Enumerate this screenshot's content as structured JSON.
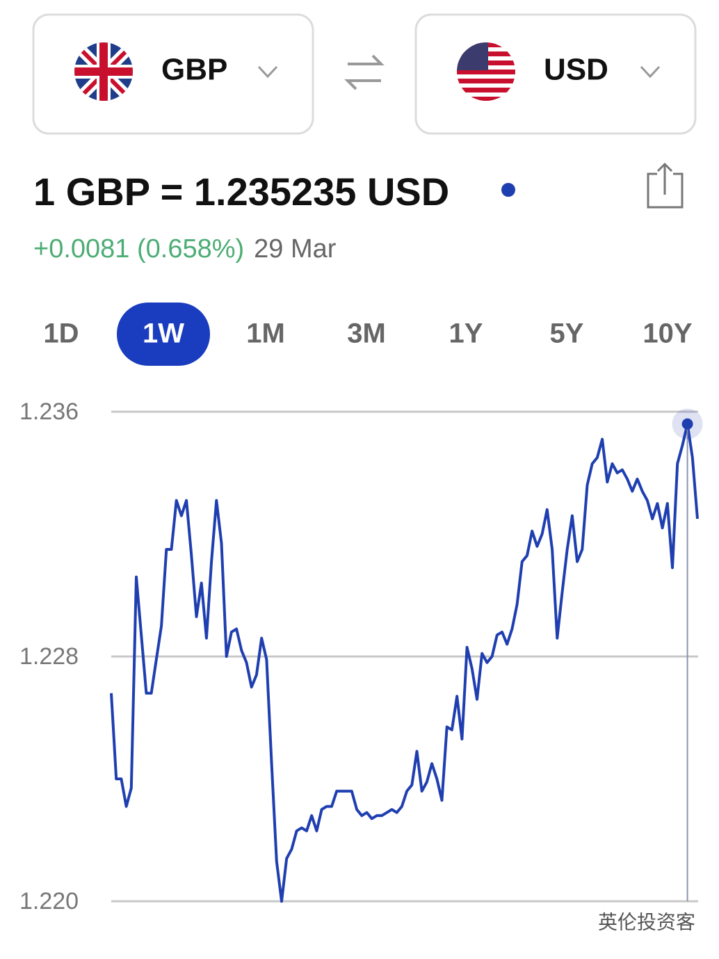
{
  "from_currency": {
    "code": "GBP"
  },
  "to_currency": {
    "code": "USD"
  },
  "rate": {
    "text": "1 GBP = 1.235235 USD",
    "change": "+0.0081 (0.658%)",
    "date": "29 Mar"
  },
  "periods": [
    "1D",
    "1W",
    "1M",
    "3M",
    "1Y",
    "5Y",
    "10Y"
  ],
  "selected_period": "1W",
  "chart_data": {
    "type": "line",
    "series": [
      {
        "color": "#1f3fb0",
        "values": [
          1.2268,
          1.224,
          1.224,
          1.2231,
          1.2237,
          1.2306,
          1.2287,
          1.2268,
          1.2268,
          1.2279,
          1.229,
          1.2315,
          1.2315,
          1.2331,
          1.2326,
          1.2331,
          1.2313,
          1.2293,
          1.2304,
          1.2286,
          1.2311,
          1.2331,
          1.2317,
          1.228,
          1.2288,
          1.2289,
          1.2282,
          1.2278,
          1.227,
          1.2274,
          1.2286,
          1.2279,
          1.2245,
          1.2213,
          1.22,
          1.2214,
          1.2217,
          1.2223,
          1.2224,
          1.2223,
          1.2228,
          1.2223,
          1.223,
          1.2231,
          1.2231,
          1.2236,
          1.2236,
          1.2236,
          1.2236,
          1.223,
          1.2228,
          1.2229,
          1.2227,
          1.2228,
          1.2228,
          1.2229,
          1.223,
          1.2229,
          1.2231,
          1.2236,
          1.2238,
          1.2249,
          1.2236,
          1.2239,
          1.2245,
          1.224,
          1.2233,
          1.2257,
          1.2256,
          1.2267,
          1.2253,
          1.2283,
          1.2276,
          1.2266,
          1.2281,
          1.2278,
          1.228,
          1.2287,
          1.2288,
          1.2284,
          1.2289,
          1.2297,
          1.2311,
          1.2313,
          1.2321,
          1.2316,
          1.232,
          1.2328,
          1.2315,
          1.2286,
          1.2301,
          1.2315,
          1.2326,
          1.2311,
          1.2315,
          1.2336,
          1.2343,
          1.2345,
          1.2351,
          1.2337,
          1.2343,
          1.234,
          1.2341,
          1.2338,
          1.2334,
          1.2338,
          1.2334,
          1.2331,
          1.2325,
          1.233,
          1.2322,
          1.233,
          1.2309,
          1.2343,
          1.2349,
          1.2356,
          1.2345,
          1.2325
        ]
      }
    ],
    "ylim": [
      1.22,
      1.236
    ],
    "yticks": [
      1.236,
      1.228,
      {
        "value": 1.22,
        "label": "1.220"
      }
    ],
    "grid": true
  },
  "watermark": "英伦投资客"
}
